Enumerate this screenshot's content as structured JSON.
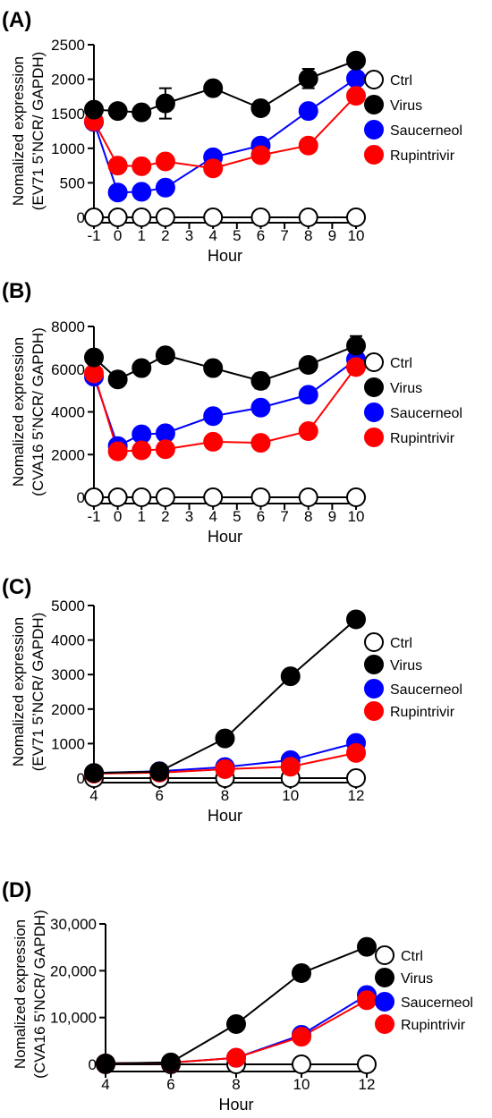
{
  "chart_data": [
    {
      "panel": "(A)",
      "type": "line",
      "xlabel": "Hour",
      "ylabel_lines": [
        "Nomalized expression",
        "(EV71 5’NCR/ GAPDH)"
      ],
      "xlim": [
        -1,
        10
      ],
      "ylim": [
        0,
        2500
      ],
      "xticks": [
        -1,
        0,
        1,
        2,
        3,
        4,
        5,
        6,
        7,
        8,
        9,
        10
      ],
      "yticks": [
        0,
        500,
        1000,
        1500,
        2000,
        2500
      ],
      "ytick_labels": [
        "0",
        "500",
        "1000",
        "1500",
        "2000",
        "2500"
      ],
      "x": [
        -1,
        0,
        1,
        2,
        4,
        6,
        8,
        10
      ],
      "grid": false,
      "legend": "right",
      "series": [
        {
          "name": "Ctrl",
          "color": "#ffffff",
          "values": [
            0,
            0,
            0,
            0,
            0,
            0,
            0,
            0
          ]
        },
        {
          "name": "Virus",
          "color": "#000000",
          "values": [
            1560,
            1540,
            1520,
            1650,
            1870,
            1580,
            2010,
            2270
          ],
          "errors": [
            0,
            0,
            0,
            220,
            0,
            0,
            140,
            0
          ]
        },
        {
          "name": "Saucerneol",
          "color": "#0000ff",
          "values": [
            1380,
            360,
            370,
            430,
            870,
            1040,
            1540,
            2010
          ]
        },
        {
          "name": "Rupintrivir",
          "color": "#ff0000",
          "values": [
            1390,
            750,
            740,
            810,
            710,
            900,
            1040,
            1760
          ]
        }
      ]
    },
    {
      "panel": "(B)",
      "type": "line",
      "xlabel": "Hour",
      "ylabel_lines": [
        "Nomalized expression",
        "(CVA16 5’NCR/ GAPDH)"
      ],
      "xlim": [
        -1,
        10
      ],
      "ylim": [
        0,
        8000
      ],
      "xticks": [
        -1,
        0,
        1,
        2,
        3,
        4,
        5,
        6,
        7,
        8,
        9,
        10
      ],
      "yticks": [
        0,
        2000,
        4000,
        6000,
        8000
      ],
      "ytick_labels": [
        "0",
        "2000",
        "4000",
        "6000",
        "8000"
      ],
      "x": [
        -1,
        0,
        1,
        2,
        4,
        6,
        8,
        10
      ],
      "grid": false,
      "legend": "right",
      "series": [
        {
          "name": "Ctrl",
          "color": "#ffffff",
          "values": [
            0,
            0,
            0,
            0,
            0,
            0,
            0,
            0
          ]
        },
        {
          "name": "Virus",
          "color": "#000000",
          "values": [
            6550,
            5520,
            6050,
            6650,
            6050,
            5450,
            6200,
            7100
          ],
          "errors": [
            0,
            0,
            0,
            0,
            0,
            350,
            0,
            450
          ]
        },
        {
          "name": "Saucerneol",
          "color": "#0000ff",
          "values": [
            5650,
            2400,
            2950,
            3000,
            3800,
            4200,
            4800,
            6450
          ]
        },
        {
          "name": "Rupintrivir",
          "color": "#ff0000",
          "values": [
            5800,
            2150,
            2200,
            2250,
            2600,
            2550,
            3100,
            6100
          ],
          "errors": [
            0,
            0,
            0,
            0,
            300,
            0,
            0,
            0
          ]
        }
      ]
    },
    {
      "panel": "(C)",
      "type": "line",
      "xlabel": "Hour",
      "ylabel_lines": [
        "Nomalized expression",
        "(EV71 5’NCR/ GAPDH)"
      ],
      "xlim": [
        4,
        12
      ],
      "ylim": [
        0,
        5000
      ],
      "xticks": [
        4,
        6,
        8,
        10,
        12
      ],
      "yticks": [
        0,
        1000,
        2000,
        3000,
        4000,
        5000
      ],
      "ytick_labels": [
        "0",
        "1000",
        "2000",
        "3000",
        "4000",
        "5000"
      ],
      "x": [
        4,
        6,
        8,
        10,
        12
      ],
      "grid": false,
      "legend": "right",
      "series": [
        {
          "name": "Ctrl",
          "color": "#ffffff",
          "values": [
            0,
            0,
            0,
            0,
            0
          ]
        },
        {
          "name": "Virus",
          "color": "#000000",
          "values": [
            150,
            190,
            1150,
            2950,
            4600
          ]
        },
        {
          "name": "Saucerneol",
          "color": "#0000ff",
          "values": [
            150,
            200,
            320,
            520,
            1020
          ]
        },
        {
          "name": "Rupintrivir",
          "color": "#ff0000",
          "values": [
            130,
            160,
            260,
            330,
            730
          ]
        }
      ]
    },
    {
      "panel": "(D)",
      "type": "line",
      "xlabel": "Hour",
      "ylabel_lines": [
        "Nomalized expression",
        "(CVA16 5’NCR/ GAPDH)"
      ],
      "xlim": [
        4,
        12
      ],
      "ylim": [
        0,
        30000
      ],
      "xticks": [
        4,
        6,
        8,
        10,
        12
      ],
      "yticks": [
        0,
        10000,
        20000,
        30000
      ],
      "ytick_labels": [
        "0",
        "10,000",
        "20,000",
        "30,000"
      ],
      "x": [
        4,
        6,
        8,
        10,
        12
      ],
      "grid": false,
      "legend": "right",
      "series": [
        {
          "name": "Ctrl",
          "color": "#ffffff",
          "values": [
            0,
            0,
            0,
            0,
            0
          ]
        },
        {
          "name": "Virus",
          "color": "#000000",
          "values": [
            200,
            400,
            8600,
            19500,
            25100
          ]
        },
        {
          "name": "Saucerneol",
          "color": "#0000ff",
          "values": [
            200,
            350,
            1400,
            6300,
            14800
          ]
        },
        {
          "name": "Rupintrivir",
          "color": "#ff0000",
          "values": [
            200,
            350,
            1400,
            5900,
            13700
          ]
        }
      ]
    }
  ]
}
